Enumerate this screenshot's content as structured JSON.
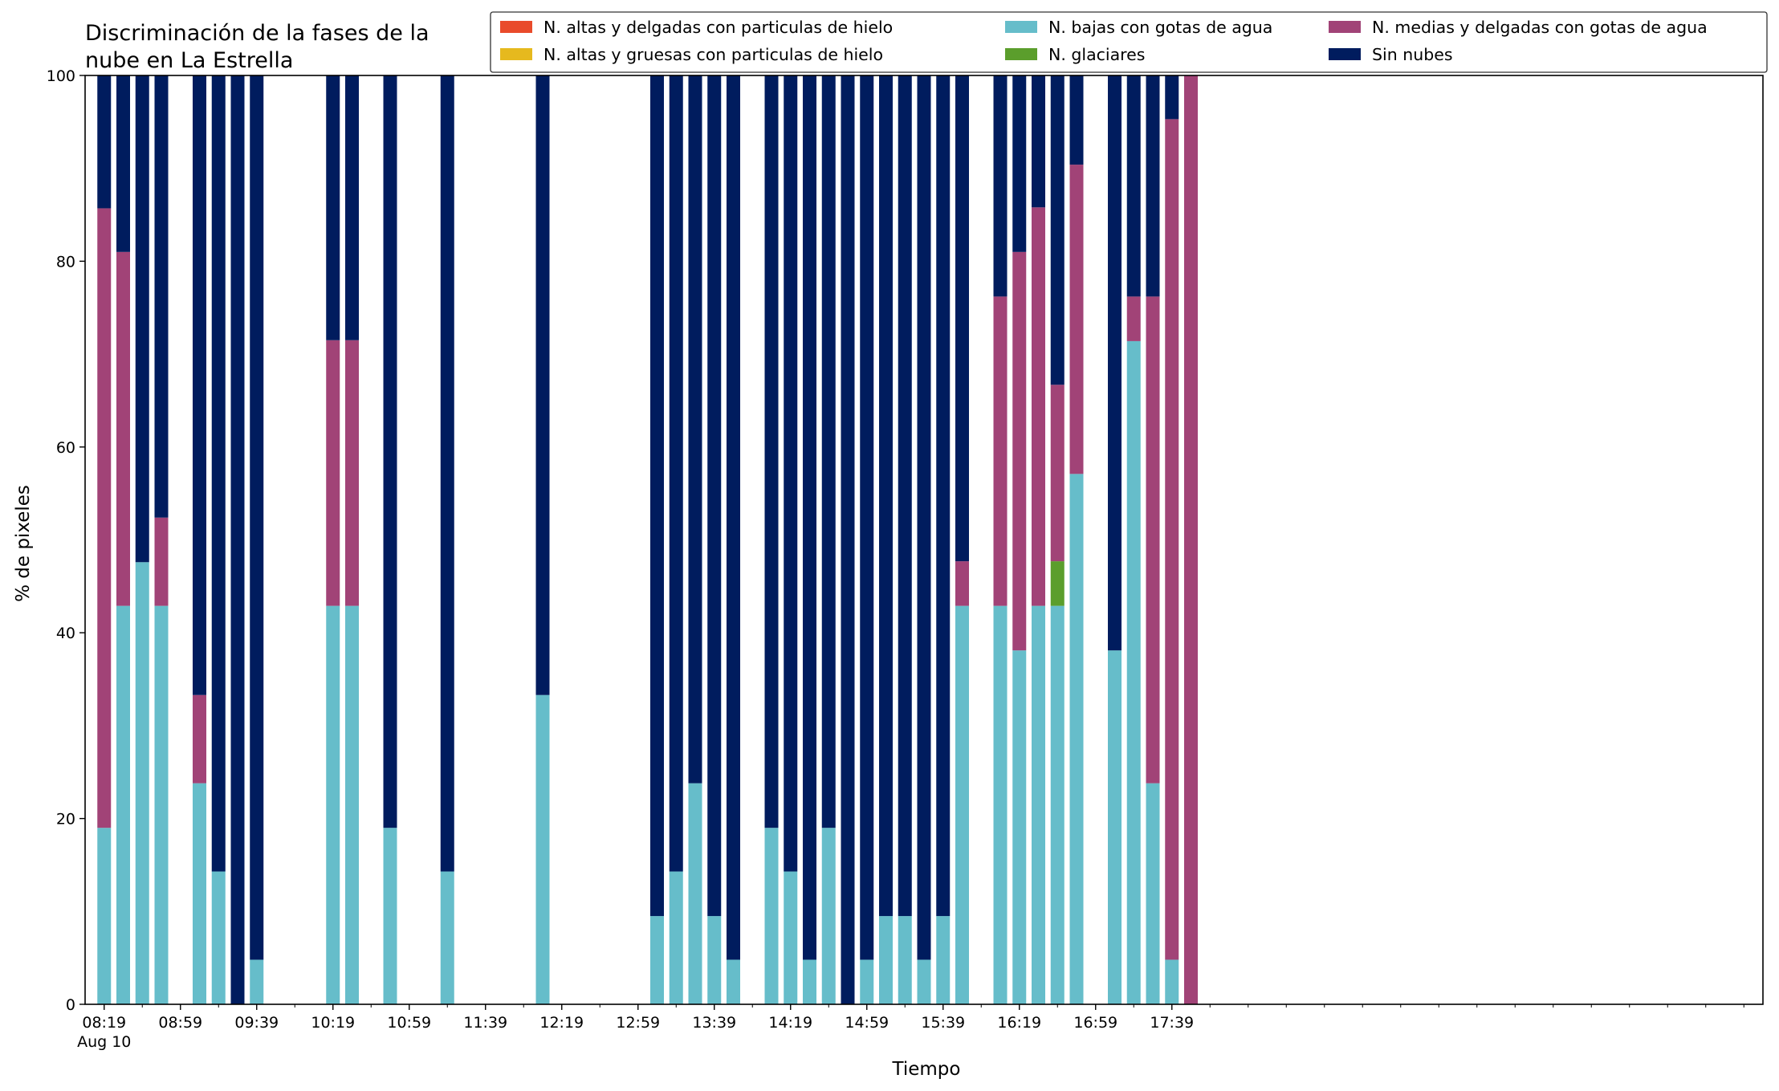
{
  "chart_data": {
    "type": "bar",
    "stacked": true,
    "title": "Discriminación de la fases de la nube en La Estrella",
    "title_lines": [
      "Discriminación de la fases de la",
      "nube en La Estrella"
    ],
    "xlabel": "Tiempo",
    "ylabel": "% de pixeles",
    "ylim": [
      0,
      100
    ],
    "yticks": [
      0,
      20,
      40,
      60,
      80,
      100
    ],
    "xlim_minutes_after_0819": [
      -10,
      870
    ],
    "xticks": [
      {
        "label": "08:19",
        "sublabel": "Aug 10",
        "minute": 0
      },
      {
        "label": "08:59",
        "minute": 40
      },
      {
        "label": "09:39",
        "minute": 80
      },
      {
        "label": "10:19",
        "minute": 120
      },
      {
        "label": "10:59",
        "minute": 160
      },
      {
        "label": "11:39",
        "minute": 200
      },
      {
        "label": "12:19",
        "minute": 240
      },
      {
        "label": "12:59",
        "minute": 280
      },
      {
        "label": "13:39",
        "minute": 320
      },
      {
        "label": "14:19",
        "minute": 360
      },
      {
        "label": "14:59",
        "minute": 400
      },
      {
        "label": "15:39",
        "minute": 440
      },
      {
        "label": "16:19",
        "minute": 480
      },
      {
        "label": "16:59",
        "minute": 520
      },
      {
        "label": "17:39",
        "minute": 560
      }
    ],
    "grid": false,
    "legend_position": "top-right",
    "series": [
      {
        "name": "N. altas y delgadas con particulas de hielo",
        "color": "#e94b2b"
      },
      {
        "name": "N. altas y gruesas con particulas de hielo",
        "color": "#e6b91e"
      },
      {
        "name": "N. bajas con gotas de agua",
        "color": "#66bdca"
      },
      {
        "name": "N. glaciares",
        "color": "#5b9e2c"
      },
      {
        "name": "N. medias y delgadas con gotas de agua",
        "color": "#a14377"
      },
      {
        "name": "Sin nubes",
        "color": "#001c5e"
      }
    ],
    "bars": [
      {
        "minute": 0,
        "values": [
          0,
          0,
          19.0,
          0,
          66.7,
          14.3
        ]
      },
      {
        "minute": 10,
        "values": [
          0,
          0,
          42.9,
          0,
          38.1,
          19.0
        ]
      },
      {
        "minute": 20,
        "values": [
          0,
          0,
          47.6,
          0,
          0,
          52.4
        ]
      },
      {
        "minute": 30,
        "values": [
          0,
          0,
          42.9,
          0,
          9.5,
          47.6
        ]
      },
      {
        "minute": 50,
        "values": [
          0,
          0,
          23.8,
          0,
          9.5,
          66.7
        ]
      },
      {
        "minute": 60,
        "values": [
          0,
          0,
          14.3,
          0,
          0,
          85.7
        ]
      },
      {
        "minute": 70,
        "values": [
          0,
          0,
          0,
          0,
          0,
          100
        ]
      },
      {
        "minute": 80,
        "values": [
          0,
          0,
          4.8,
          0,
          0,
          95.2
        ]
      },
      {
        "minute": 120,
        "values": [
          0,
          0,
          42.9,
          0,
          28.6,
          28.5
        ]
      },
      {
        "minute": 130,
        "values": [
          0,
          0,
          42.9,
          0,
          28.6,
          28.5
        ]
      },
      {
        "minute": 150,
        "values": [
          0,
          0,
          19.0,
          0,
          0,
          81.0
        ]
      },
      {
        "minute": 180,
        "values": [
          0,
          0,
          14.3,
          0,
          0,
          85.7
        ]
      },
      {
        "minute": 230,
        "values": [
          0,
          0,
          33.3,
          0,
          0,
          66.7
        ]
      },
      {
        "minute": 290,
        "values": [
          0,
          0,
          9.5,
          0,
          0,
          90.5
        ]
      },
      {
        "minute": 300,
        "values": [
          0,
          0,
          14.3,
          0,
          0,
          85.7
        ]
      },
      {
        "minute": 310,
        "values": [
          0,
          0,
          23.8,
          0,
          0,
          76.2
        ]
      },
      {
        "minute": 320,
        "values": [
          0,
          0,
          9.5,
          0,
          0,
          90.5
        ]
      },
      {
        "minute": 330,
        "values": [
          0,
          0,
          4.8,
          0,
          0,
          95.2
        ]
      },
      {
        "minute": 350,
        "values": [
          0,
          0,
          19.0,
          0,
          0,
          81.0
        ]
      },
      {
        "minute": 360,
        "values": [
          0,
          0,
          14.3,
          0,
          0,
          85.7
        ]
      },
      {
        "minute": 370,
        "values": [
          0,
          0,
          4.8,
          0,
          0,
          95.2
        ]
      },
      {
        "minute": 380,
        "values": [
          0,
          0,
          19.0,
          0,
          0,
          81.0
        ]
      },
      {
        "minute": 390,
        "values": [
          0,
          0,
          0,
          0,
          0,
          100
        ]
      },
      {
        "minute": 400,
        "values": [
          0,
          0,
          4.8,
          0,
          0,
          95.2
        ]
      },
      {
        "minute": 410,
        "values": [
          0,
          0,
          9.5,
          0,
          0,
          90.5
        ]
      },
      {
        "minute": 420,
        "values": [
          0,
          0,
          9.5,
          0,
          0,
          90.5
        ]
      },
      {
        "minute": 430,
        "values": [
          0,
          0,
          4.8,
          0,
          0,
          95.2
        ]
      },
      {
        "minute": 440,
        "values": [
          0,
          0,
          9.5,
          0,
          0,
          90.5
        ]
      },
      {
        "minute": 450,
        "values": [
          0,
          0,
          42.9,
          0,
          4.8,
          52.3
        ]
      },
      {
        "minute": 470,
        "values": [
          0,
          0,
          42.9,
          0,
          33.3,
          23.8
        ]
      },
      {
        "minute": 480,
        "values": [
          0,
          0,
          38.1,
          0,
          42.9,
          19.0
        ]
      },
      {
        "minute": 490,
        "values": [
          0,
          0,
          42.9,
          0,
          42.9,
          14.2
        ]
      },
      {
        "minute": 500,
        "values": [
          0,
          0,
          42.9,
          4.8,
          19.0,
          33.3
        ]
      },
      {
        "minute": 510,
        "values": [
          0,
          0,
          57.1,
          0,
          33.3,
          9.6
        ]
      },
      {
        "minute": 530,
        "values": [
          0,
          0,
          38.1,
          0,
          0,
          61.9
        ]
      },
      {
        "minute": 540,
        "values": [
          0,
          0,
          71.4,
          0,
          4.8,
          23.8
        ]
      },
      {
        "minute": 550,
        "values": [
          0,
          0,
          23.8,
          0,
          52.4,
          23.8
        ]
      },
      {
        "minute": 560,
        "values": [
          0,
          0,
          4.8,
          0,
          90.5,
          4.7
        ]
      },
      {
        "minute": 570,
        "values": [
          0,
          0,
          0,
          0,
          100,
          0
        ]
      }
    ]
  }
}
